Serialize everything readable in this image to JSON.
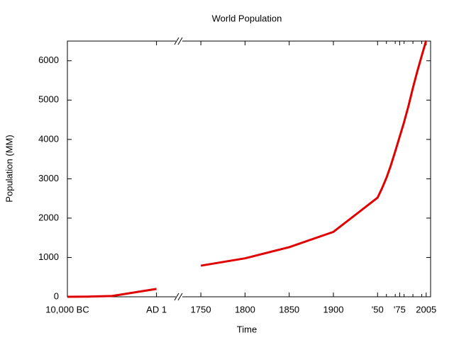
{
  "chart_data": {
    "type": "line",
    "title": "World Population",
    "xlabel": "Time",
    "ylabel": "Population (MM)",
    "color": "#e00000",
    "ylim": [
      0,
      6500
    ],
    "yticks": [
      0,
      1000,
      2000,
      3000,
      4000,
      5000,
      6000
    ],
    "x_segments": [
      {
        "xlim": [
          -10000,
          2500
        ],
        "xticks": [
          {
            "value": -10000,
            "label": "10,000 BC"
          },
          {
            "value": 1,
            "label": "AD 1"
          }
        ],
        "x": [
          -10000,
          -7600,
          -5000,
          1
        ],
        "values": [
          1,
          5,
          20,
          200
        ]
      },
      {
        "xlim": [
          1725,
          2010
        ],
        "xticks": [
          1750,
          1800,
          1850,
          1900,
          {
            "value": 1950,
            "label": "'50"
          },
          {
            "value": 1975,
            "label": "'75"
          },
          2005
        ],
        "xminorticks": [
          1960,
          1970,
          1980,
          1990,
          2000
        ],
        "x": [
          1750,
          1800,
          1850,
          1900,
          1950,
          1955,
          1960,
          1965,
          1970,
          1975,
          1980,
          1985,
          1990,
          1995,
          2000,
          2005
        ],
        "values": [
          791,
          978,
          1262,
          1650,
          2519,
          2756,
          3021,
          3338,
          3697,
          4068,
          4440,
          4853,
          5310,
          5735,
          6127,
          6514
        ]
      }
    ]
  }
}
